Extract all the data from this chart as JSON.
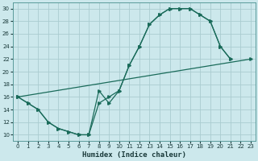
{
  "xlabel": "Humidex (Indice chaleur)",
  "bg_color": "#cce8ec",
  "grid_color": "#aaccd0",
  "line_color": "#1a6b5a",
  "xlim": [
    -0.5,
    23.5
  ],
  "ylim": [
    9,
    31
  ],
  "xticks": [
    0,
    1,
    2,
    3,
    4,
    5,
    6,
    7,
    8,
    9,
    10,
    11,
    12,
    13,
    14,
    15,
    16,
    17,
    18,
    19,
    20,
    21,
    22,
    23
  ],
  "yticks": [
    10,
    12,
    14,
    16,
    18,
    20,
    22,
    24,
    26,
    28,
    30
  ],
  "line1_x": [
    0,
    1,
    2,
    3,
    4,
    5,
    6,
    7,
    8,
    9,
    10,
    11,
    12,
    13,
    14,
    15,
    16,
    17,
    18,
    19,
    20,
    21
  ],
  "line1_y": [
    16,
    15,
    14,
    12,
    11,
    10.5,
    10,
    10,
    15,
    16,
    17,
    21,
    24,
    27.5,
    29,
    30,
    30,
    30,
    29,
    28,
    24,
    22
  ],
  "line2_x": [
    0,
    1,
    2,
    3,
    4,
    5,
    6,
    7,
    8,
    9,
    10,
    11,
    12,
    13,
    14,
    15,
    16,
    17,
    18,
    19,
    20,
    21
  ],
  "line2_y": [
    16,
    15,
    14,
    12,
    11,
    10.5,
    10,
    10,
    17,
    15,
    17,
    21,
    24,
    27.5,
    29,
    30,
    30,
    30,
    29,
    28,
    24,
    22
  ],
  "line3_x": [
    0,
    23
  ],
  "line3_y": [
    16,
    22
  ]
}
